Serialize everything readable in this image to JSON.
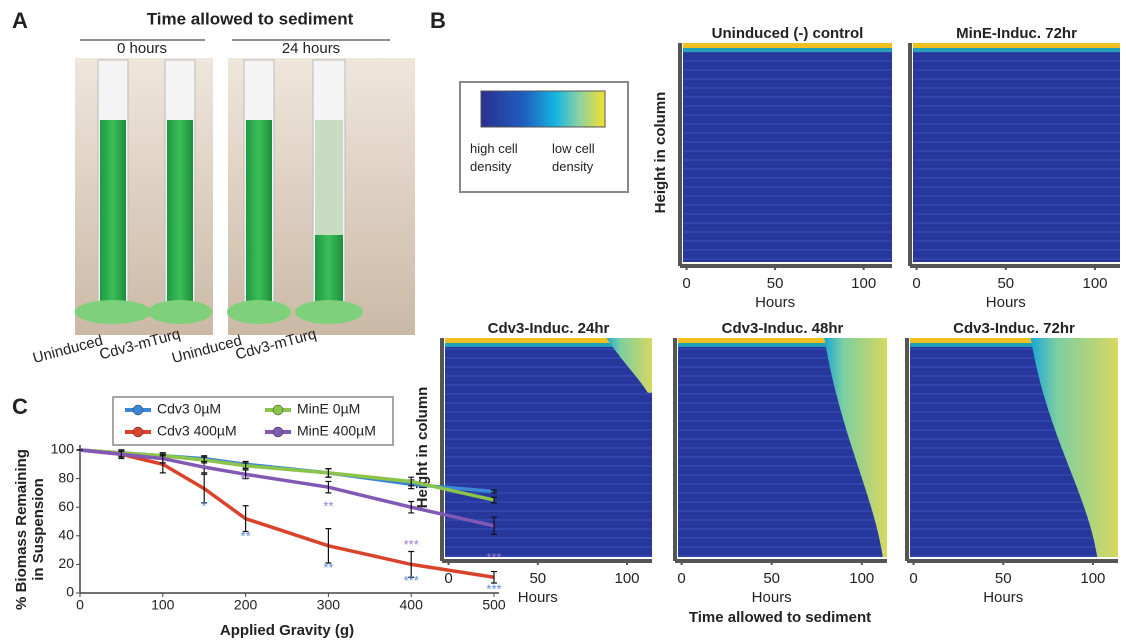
{
  "panel_labels": [
    "A",
    "B",
    "C"
  ],
  "panel_a": {
    "title": "Time allowed to sediment",
    "groups": [
      "0 hours",
      "24 hours"
    ],
    "tube_labels": [
      "Uninduced",
      "Cdv3-mTurq",
      "Uninduced",
      "Cdv3-mTurq"
    ]
  },
  "panel_b": {
    "colorbar_labels": [
      "high cell density",
      "low cell density"
    ],
    "xlabel": "Time allowed to sediment"
  },
  "chart_data": [
    {
      "type": "heatmap",
      "title": "Uninduced (-) control",
      "ylabel": "Height in column",
      "xlabel": "Hours",
      "xlim": [
        -2,
        116
      ],
      "xticks": [
        0,
        50,
        100
      ]
    },
    {
      "type": "heatmap",
      "title": "MinE-Induc. 72hr",
      "xlabel": "Hours",
      "xlim": [
        -2,
        114
      ],
      "xticks": [
        0,
        50,
        100
      ]
    },
    {
      "type": "heatmap",
      "title": "Cdv3-Induc. 24hr",
      "ylabel": "Height in column",
      "xlabel": "Hours",
      "xlim": [
        -2,
        114
      ],
      "xticks": [
        0,
        50,
        100
      ]
    },
    {
      "type": "heatmap",
      "title": "Cdv3-Induc. 48hr",
      "xlabel": "Hours",
      "xlim": [
        -2,
        114
      ],
      "xticks": [
        0,
        50,
        100
      ]
    },
    {
      "type": "heatmap",
      "title": "Cdv3-Induc. 72hr",
      "xlabel": "Hours",
      "xlim": [
        -2,
        114
      ],
      "xticks": [
        0,
        50,
        100
      ]
    },
    {
      "type": "line",
      "xlabel": "Applied Gravity (g)",
      "ylabel": [
        "% Biomass Remaining",
        "in Suspension"
      ],
      "x": [
        0,
        50,
        100,
        150,
        200,
        300,
        400,
        500
      ],
      "xlim": [
        0,
        500
      ],
      "xticks": [
        0,
        100,
        200,
        300,
        400,
        500
      ],
      "ylim": [
        0,
        100
      ],
      "yticks": [
        0,
        20,
        40,
        60,
        80,
        100
      ],
      "series": [
        {
          "name": "Cdv3 0µM",
          "color": "#3b87d6",
          "values": [
            100,
            98,
            96,
            94,
            90,
            84,
            76,
            71
          ],
          "errors": [
            0,
            2,
            2,
            2,
            2,
            3,
            3,
            1
          ]
        },
        {
          "name": "MinE 0µM",
          "color": "#8cc34a",
          "values": [
            100,
            98,
            96,
            93,
            89,
            84,
            78,
            65
          ],
          "errors": [
            0,
            2,
            2,
            2,
            2,
            3,
            3,
            2
          ]
        },
        {
          "name": "Cdv3 400µM",
          "color": "#d9432b",
          "values": [
            100,
            97,
            90,
            73,
            52,
            33,
            20,
            11
          ],
          "errors": [
            0,
            3,
            6,
            10,
            9,
            12,
            9,
            4
          ]
        },
        {
          "name": "MinE 400µM",
          "color": "#8159b5",
          "values": [
            100,
            97,
            94,
            88,
            83,
            74,
            60,
            47
          ],
          "errors": [
            0,
            2,
            3,
            4,
            3,
            4,
            4,
            6
          ]
        }
      ],
      "annotations": [
        {
          "x": 150,
          "y": 86,
          "text": "*",
          "color": "#9a7cd0"
        },
        {
          "x": 150,
          "y": 60,
          "text": "*",
          "color": "#5a8ad8"
        },
        {
          "x": 200,
          "y": 79,
          "text": "**",
          "color": "#9a7cd0"
        },
        {
          "x": 200,
          "y": 39,
          "text": "**",
          "color": "#5a8ad8"
        },
        {
          "x": 300,
          "y": 60,
          "text": "**",
          "color": "#9a7cd0"
        },
        {
          "x": 300,
          "y": 17,
          "text": "**",
          "color": "#5a8ad8"
        },
        {
          "x": 400,
          "y": 33,
          "text": "***",
          "color": "#9a7cd0"
        },
        {
          "x": 400,
          "y": 8,
          "text": "***",
          "color": "#5a8ad8"
        },
        {
          "x": 500,
          "y": 24,
          "text": "***",
          "color": "#9a7cd0"
        },
        {
          "x": 500,
          "y": 2,
          "text": "***",
          "color": "#5a8ad8"
        }
      ]
    }
  ]
}
